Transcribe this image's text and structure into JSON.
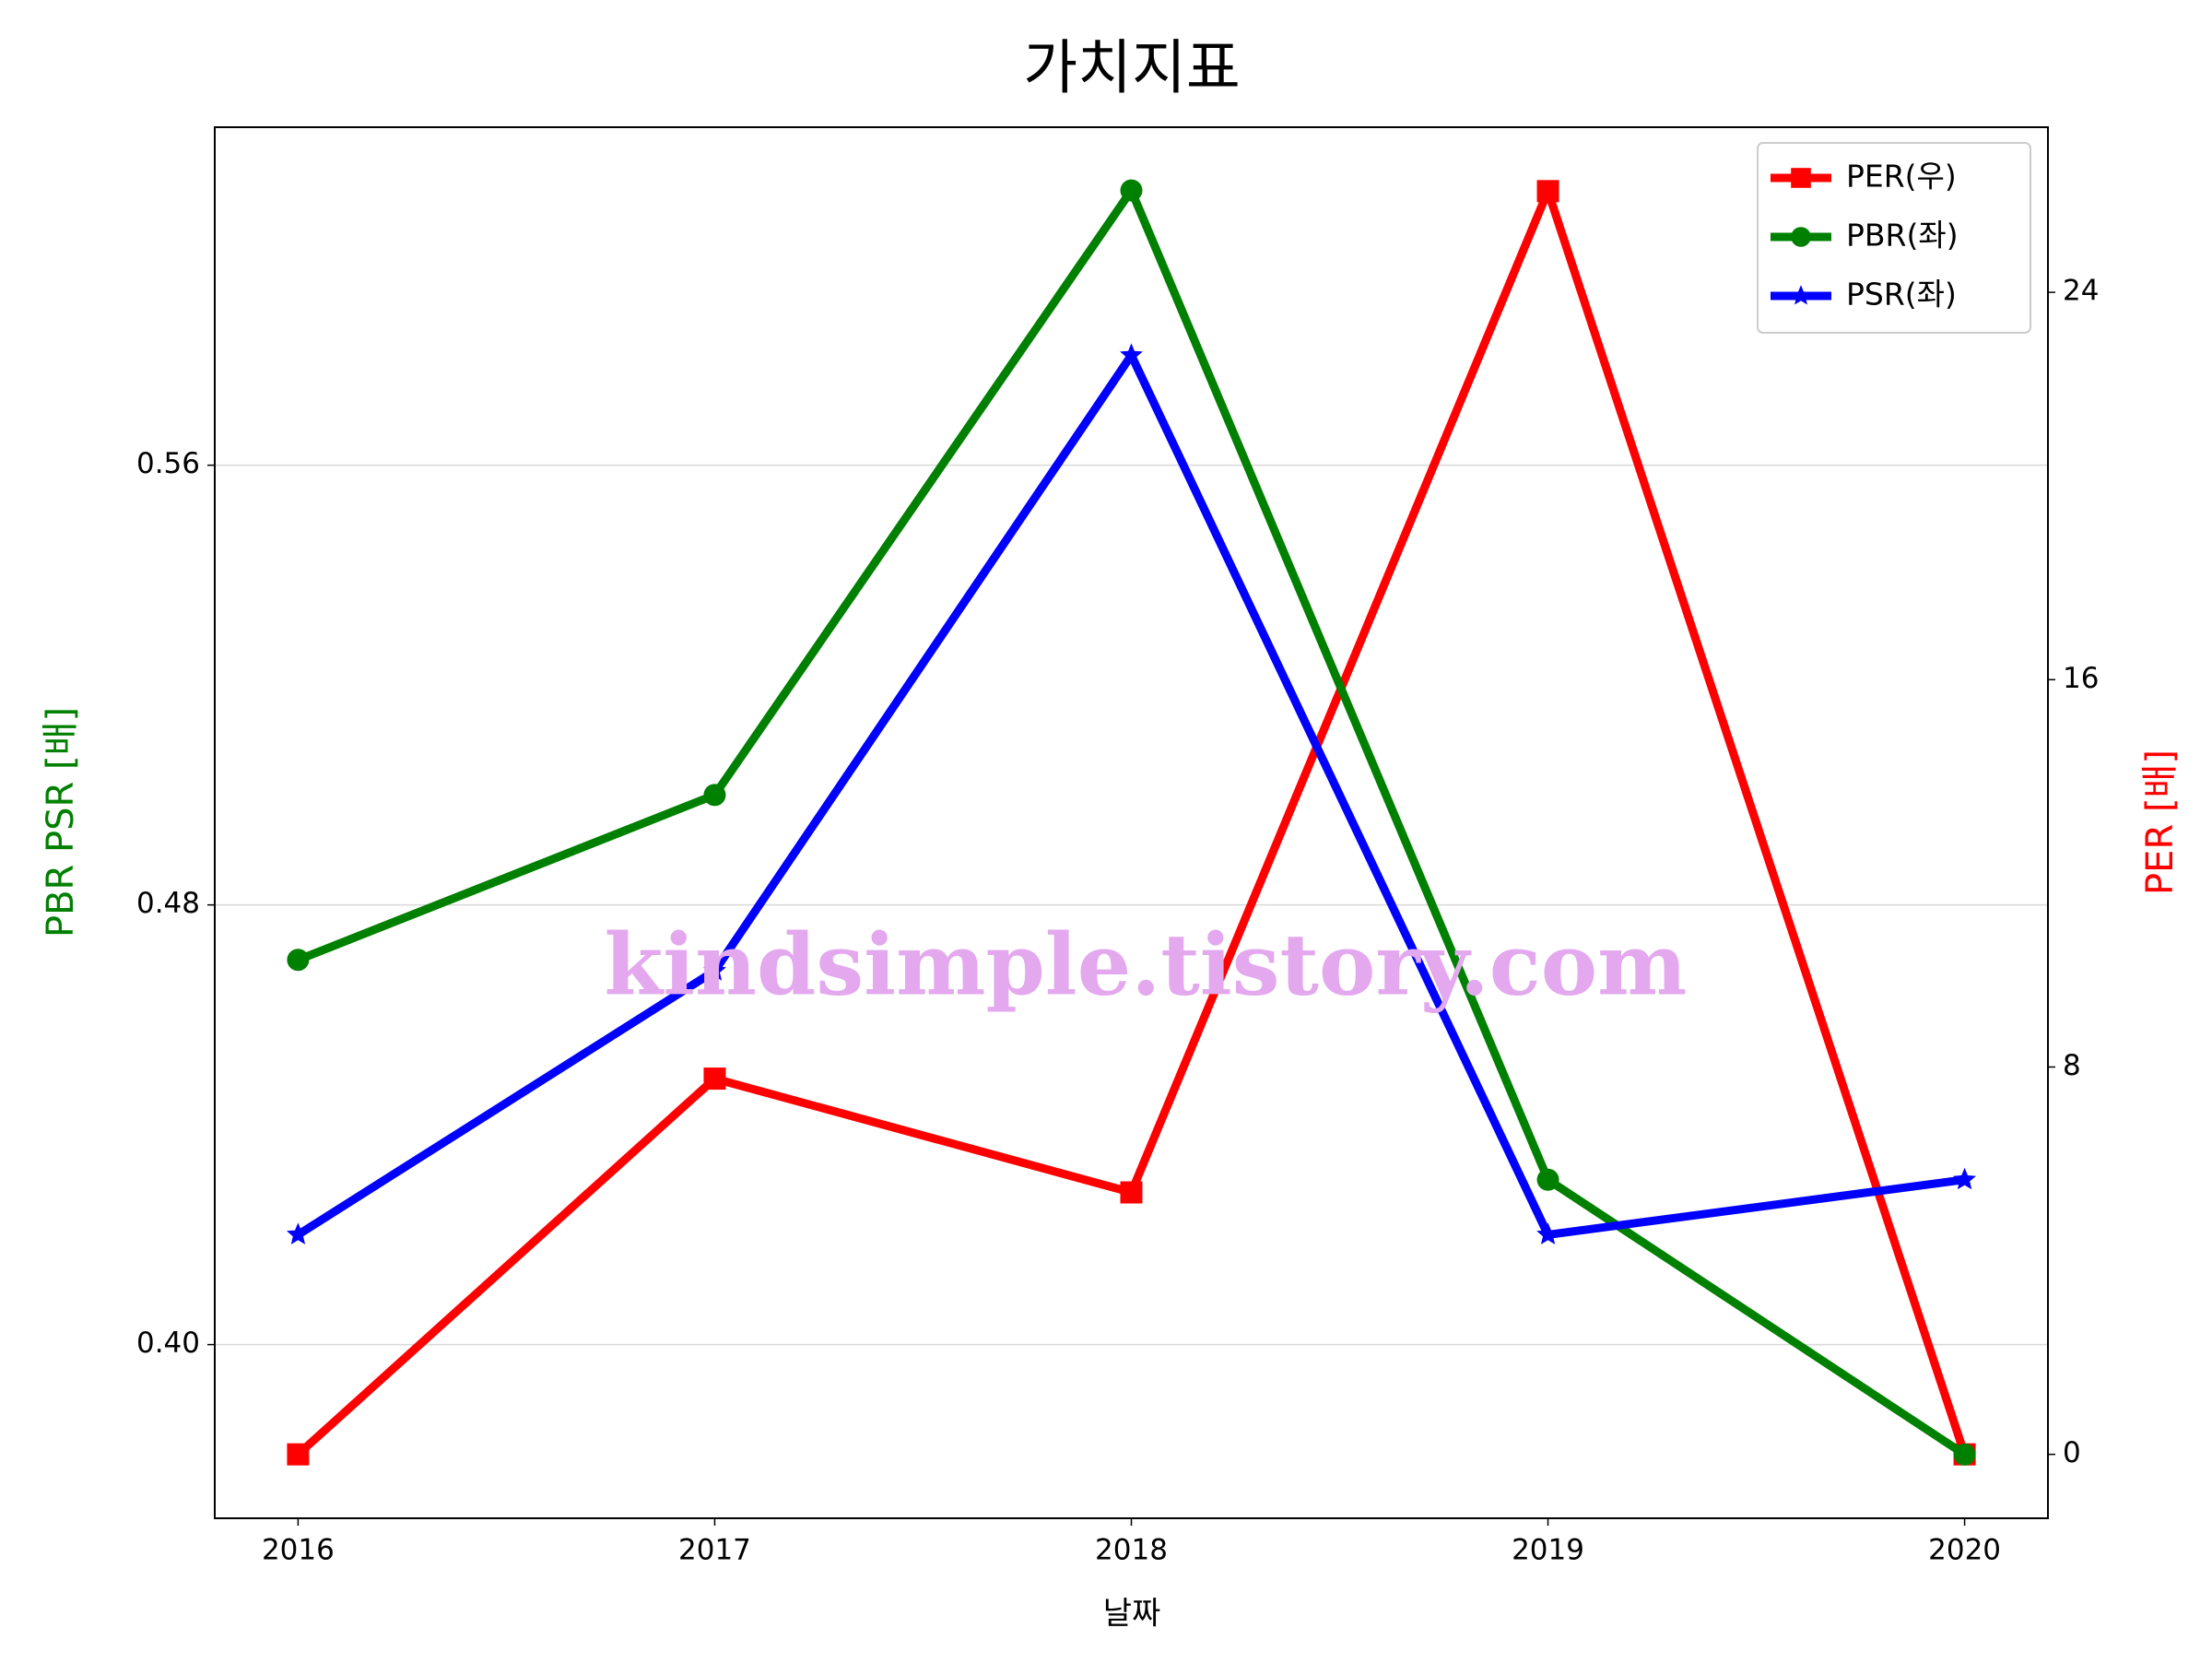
{
  "chart_data": {
    "type": "line",
    "title": "가치지표",
    "x_label": "날짜",
    "y_label": "PBR PSR [배]",
    "y2_label": "PER [배]",
    "annotation": "kindsimple.tistory.com",
    "x": [
      2016,
      2017,
      2018,
      2019,
      2020
    ],
    "xlim": [
      2015.8,
      2020.2
    ],
    "xticks": [
      2016,
      2017,
      2018,
      2019,
      2020
    ],
    "ylim": [
      0.3684,
      0.6215
    ],
    "yticks": [
      {
        "value": 0.4,
        "label": "0.40"
      },
      {
        "value": 0.48,
        "label": "0.48"
      },
      {
        "value": 0.56,
        "label": "0.56"
      }
    ],
    "y2lim": [
      -1.32,
      27.41
    ],
    "y2ticks": [
      0,
      8,
      16,
      24
    ],
    "grid": true,
    "legend": "upper right",
    "series": [
      {
        "name": "PER(우)",
        "color": "#ff0000",
        "marker": "square",
        "axis": "y2",
        "values": [
          0,
          7.76,
          5.41,
          26.09,
          0
        ]
      },
      {
        "name": "PBR(좌)",
        "color": "#008000",
        "marker": "circle",
        "values": [
          0.47,
          0.5,
          0.61,
          0.43,
          0.38
        ]
      },
      {
        "name": "PSR(좌)",
        "color": "#0000ff",
        "marker": "star",
        "values": [
          0.42,
          0.468,
          0.58,
          0.42,
          0.43
        ]
      }
    ]
  }
}
